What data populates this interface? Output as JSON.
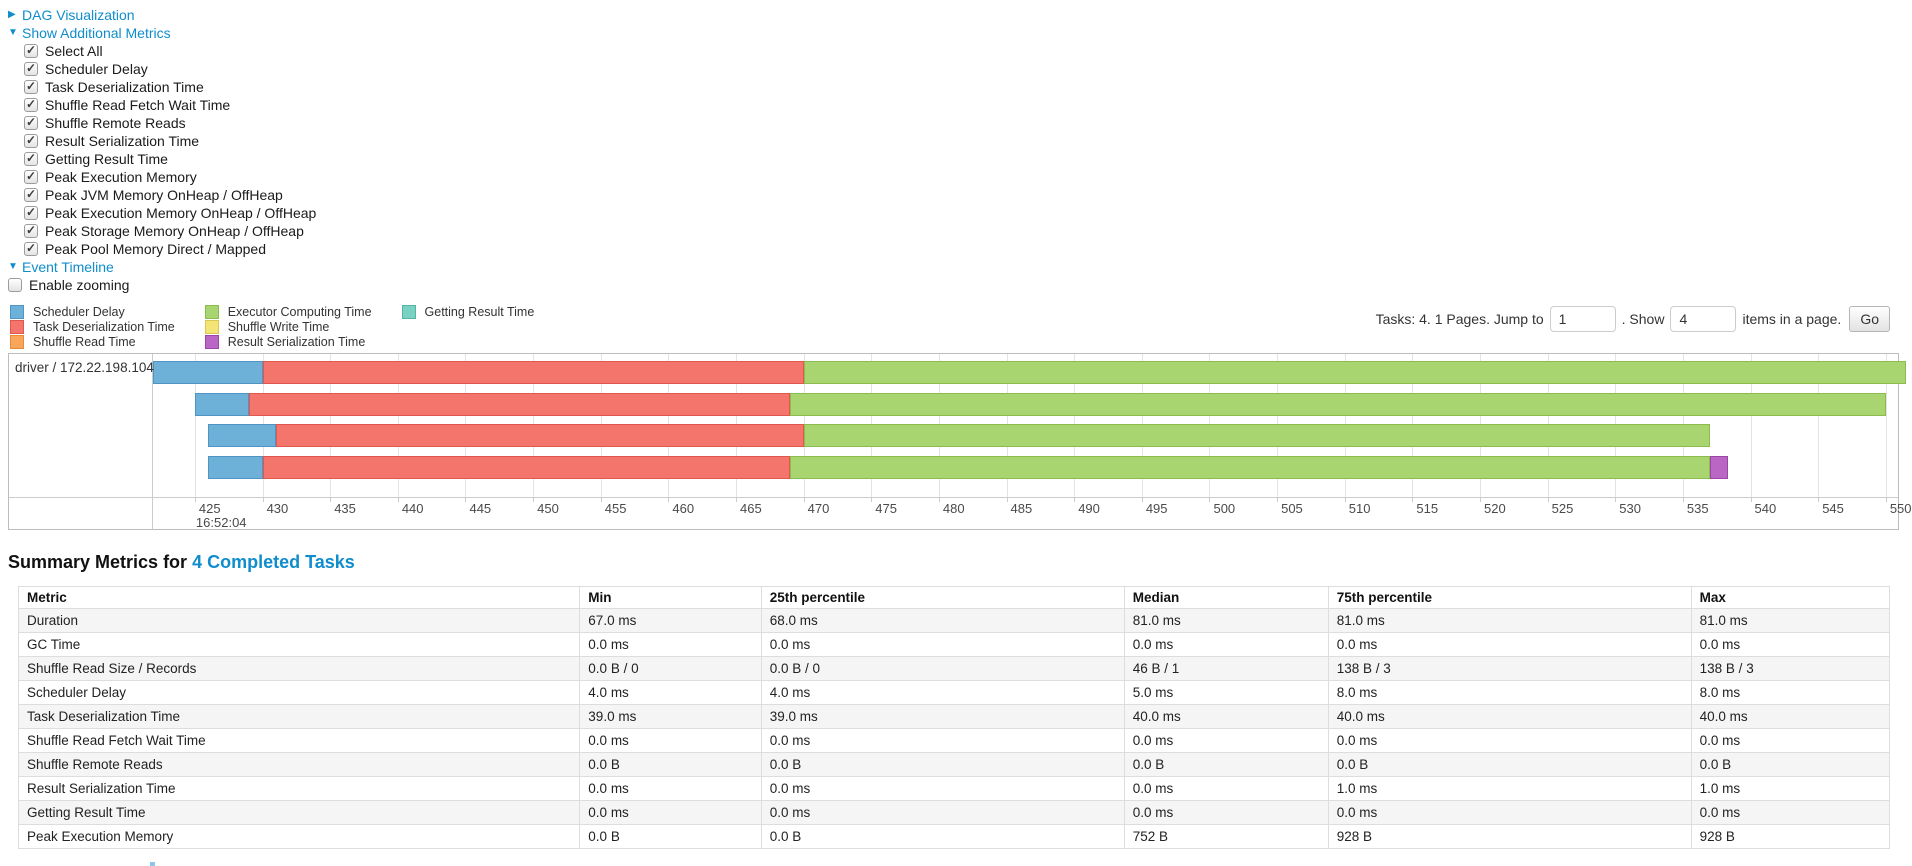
{
  "icons": {
    "collapsed_arrow": "▶",
    "expanded_arrow": "▼"
  },
  "controls": {
    "dag": {
      "label": "DAG Visualization",
      "expanded": false
    },
    "metrics": {
      "label": "Show Additional Metrics",
      "expanded": true,
      "items": [
        "Select All",
        "Scheduler Delay",
        "Task Deserialization Time",
        "Shuffle Read Fetch Wait Time",
        "Shuffle Remote Reads",
        "Result Serialization Time",
        "Getting Result Time",
        "Peak Execution Memory",
        "Peak JVM Memory OnHeap / OffHeap",
        "Peak Execution Memory OnHeap / OffHeap",
        "Peak Storage Memory OnHeap / OffHeap",
        "Peak Pool Memory Direct / Mapped"
      ],
      "all_checked": true
    },
    "event_timeline": {
      "label": "Event Timeline",
      "expanded": true
    },
    "enable_zooming": {
      "label": "Enable zooming",
      "checked": false
    }
  },
  "legend": {
    "order": [
      "scheduler_delay",
      "task_deserialization",
      "shuffle_read",
      "executor_computing",
      "shuffle_write",
      "result_serialization",
      "getting_result"
    ]
  },
  "pager": {
    "prefix": "Tasks: 4. 1 Pages. Jump to",
    "jump_value": "1",
    "mid": ". Show",
    "show_value": "4",
    "suffix": "items in a page.",
    "go_label": "Go"
  },
  "chart_data": {
    "type": "timeline",
    "group_label": "driver / 172.22.198.104",
    "axis": {
      "start": 421.9,
      "end": 550.9,
      "first_tick": 425,
      "last_tick": 550,
      "tick_interval": 5,
      "major_label": "16:52:04",
      "units": "ms within second 16:52:04"
    },
    "colors": {
      "scheduler_delay": {
        "label": "Scheduler Delay",
        "fill": "#6DB1D8",
        "border": "#4F94C4"
      },
      "task_deserialization": {
        "label": "Task Deserialization Time",
        "fill": "#F4756B",
        "border": "#E1564E"
      },
      "shuffle_read": {
        "label": "Shuffle Read Time",
        "fill": "#F9A65C",
        "border": "#E8893C"
      },
      "executor_computing": {
        "label": "Executor Computing Time",
        "fill": "#A8D56F",
        "border": "#8CBB4E"
      },
      "shuffle_write": {
        "label": "Shuffle Write Time",
        "fill": "#F3E575",
        "border": "#D9C750"
      },
      "result_serialization": {
        "label": "Result Serialization Time",
        "fill": "#B966C5",
        "border": "#9C44A8"
      },
      "getting_result": {
        "label": "Getting Result Time",
        "fill": "#79D0C3",
        "border": "#50B5A5"
      }
    },
    "tasks": [
      {
        "segments": [
          {
            "name": "scheduler_delay",
            "start": 421.9,
            "end": 430
          },
          {
            "name": "task_deserialization",
            "start": 430,
            "end": 470
          },
          {
            "name": "executor_computing",
            "start": 470,
            "end": 551.5
          }
        ]
      },
      {
        "segments": [
          {
            "name": "scheduler_delay",
            "start": 425,
            "end": 429
          },
          {
            "name": "task_deserialization",
            "start": 429,
            "end": 469
          },
          {
            "name": "executor_computing",
            "start": 469,
            "end": 550
          }
        ]
      },
      {
        "segments": [
          {
            "name": "scheduler_delay",
            "start": 426,
            "end": 431
          },
          {
            "name": "task_deserialization",
            "start": 431,
            "end": 470
          },
          {
            "name": "executor_computing",
            "start": 470,
            "end": 537
          }
        ]
      },
      {
        "segments": [
          {
            "name": "scheduler_delay",
            "start": 426,
            "end": 430
          },
          {
            "name": "task_deserialization",
            "start": 430,
            "end": 469
          },
          {
            "name": "executor_computing",
            "start": 469,
            "end": 537
          },
          {
            "name": "result_serialization",
            "start": 537,
            "end": 538.3
          }
        ]
      }
    ]
  },
  "summary": {
    "title_prefix": "Summary Metrics for",
    "title_link": "4 Completed Tasks",
    "table": {
      "headers": [
        "Metric",
        "Min",
        "25th percentile",
        "Median",
        "75th percentile",
        "Max"
      ],
      "col_widths": [
        "30%",
        "9.7%",
        "19.4%",
        "10.9%",
        "19.4%",
        "10.6%"
      ],
      "rows": [
        {
          "metric": "Duration",
          "values": [
            "67.0 ms",
            "68.0 ms",
            "81.0 ms",
            "81.0 ms",
            "81.0 ms"
          ]
        },
        {
          "metric": "GC Time",
          "values": [
            "0.0 ms",
            "0.0 ms",
            "0.0 ms",
            "0.0 ms",
            "0.0 ms"
          ]
        },
        {
          "metric": "Shuffle Read Size / Records",
          "values": [
            "0.0 B / 0",
            "0.0 B / 0",
            "46 B / 1",
            "138 B / 3",
            "138 B / 3"
          ]
        },
        {
          "metric": "Scheduler Delay",
          "values": [
            "4.0 ms",
            "4.0 ms",
            "5.0 ms",
            "8.0 ms",
            "8.0 ms"
          ]
        },
        {
          "metric": "Task Deserialization Time",
          "values": [
            "39.0 ms",
            "39.0 ms",
            "40.0 ms",
            "40.0 ms",
            "40.0 ms"
          ]
        },
        {
          "metric": "Shuffle Read Fetch Wait Time",
          "values": [
            "0.0 ms",
            "0.0 ms",
            "0.0 ms",
            "0.0 ms",
            "0.0 ms"
          ]
        },
        {
          "metric": "Shuffle Remote Reads",
          "values": [
            "0.0 B",
            "0.0 B",
            "0.0 B",
            "0.0 B",
            "0.0 B"
          ]
        },
        {
          "metric": "Result Serialization Time",
          "values": [
            "0.0 ms",
            "0.0 ms",
            "0.0 ms",
            "1.0 ms",
            "1.0 ms"
          ]
        },
        {
          "metric": "Getting Result Time",
          "values": [
            "0.0 ms",
            "0.0 ms",
            "0.0 ms",
            "0.0 ms",
            "0.0 ms"
          ]
        },
        {
          "metric": "Peak Execution Memory",
          "values": [
            "0.0 B",
            "0.0 B",
            "752 B",
            "928 B",
            "928 B"
          ]
        }
      ]
    }
  }
}
